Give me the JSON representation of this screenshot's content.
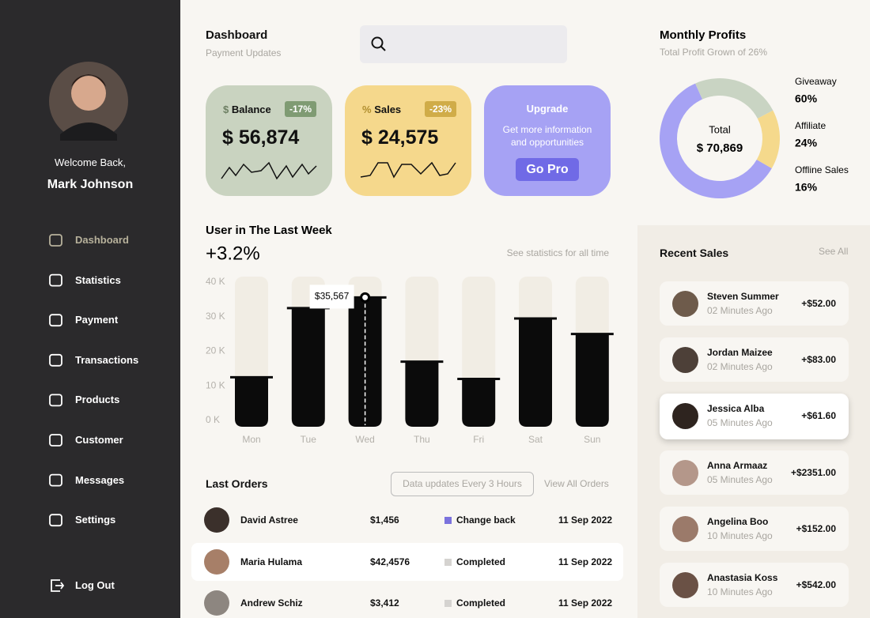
{
  "sidebar": {
    "welcome": "Welcome Back,",
    "user_name": "Mark Johnson",
    "menu": [
      "Dashboard",
      "Statistics",
      "Payment",
      "Transactions",
      "Products",
      "Customer",
      "Messages",
      "Settings"
    ],
    "logout": "Log Out"
  },
  "header": {
    "title": "Dashboard",
    "subtitle": "Payment Updates"
  },
  "cards": [
    {
      "label": "Balance",
      "badge": "-17%",
      "amount": "$ 56,874"
    },
    {
      "label": "Sales",
      "badge": "-23%",
      "amount": "$ 24,575"
    }
  ],
  "upgrade": {
    "title": "Upgrade",
    "text": "Get more information and opportunities",
    "button": "Go Pro"
  },
  "chart_data": [
    {
      "type": "bar",
      "title": "User in The Last Week",
      "change": "+3.2%",
      "link": "See statistics for all time",
      "categories": [
        "Mon",
        "Tue",
        "Wed",
        "Thu",
        "Fri",
        "Sat",
        "Sun"
      ],
      "values": [
        12500,
        32500,
        35567,
        17000,
        12000,
        29500,
        25000
      ],
      "value_labels": [
        null,
        null,
        "$35,567",
        null,
        null,
        null,
        null
      ],
      "color": "#0b0b0b",
      "ylim": [
        0,
        40000
      ],
      "yticks": [
        {
          "value": 0,
          "label": "0 K"
        },
        {
          "value": 10000,
          "label": "10 K"
        },
        {
          "value": 20000,
          "label": "20 K"
        },
        {
          "value": 30000,
          "label": "30 K"
        },
        {
          "value": 40000,
          "label": "40 K"
        }
      ]
    },
    {
      "type": "pie",
      "title": "Monthly Profits",
      "subtitle": "Total Profit Grown of 26%",
      "center_label": "Total",
      "center_value": "$ 70,869",
      "categories": [
        "Giveaway",
        "Affiliate",
        "Offline Sales"
      ],
      "values": [
        60,
        24,
        16
      ],
      "value_labels": [
        "60%",
        "24%",
        "16%"
      ],
      "colors": [
        "#a6a2f4",
        "#c9d4c3",
        "#f5d98c"
      ]
    }
  ],
  "last_orders": {
    "title": "Last Orders",
    "note": "Data updates Every 3 Hours",
    "link": "View All Orders",
    "rows": [
      {
        "name": "David Astree",
        "amount": "$1,456",
        "status": "Change back",
        "date": "11 Sep 2022"
      },
      {
        "name": "Maria Hulama",
        "amount": "$42,4576",
        "status": "Completed",
        "date": "11 Sep 2022"
      },
      {
        "name": "Andrew Schiz",
        "amount": "$3,412",
        "status": "Completed",
        "date": "11 Sep 2022"
      }
    ]
  },
  "recent_sales": {
    "title": "Recent Sales",
    "link": "See All",
    "items": [
      {
        "name": "Steven Summer",
        "time": "02 Minutes Ago",
        "amount": "+$52.00"
      },
      {
        "name": "Jordan Maizee",
        "time": "02 Minutes Ago",
        "amount": "+$83.00"
      },
      {
        "name": "Jessica Alba",
        "time": "05 Minutes Ago",
        "amount": "+$61.60"
      },
      {
        "name": "Anna Armaaz",
        "time": "05 Minutes Ago",
        "amount": "+$2351.00"
      },
      {
        "name": "Angelina Boo",
        "time": "10 Minutes Ago",
        "amount": "+$152.00"
      },
      {
        "name": "Anastasia Koss",
        "time": "10 Minutes Ago",
        "amount": "+$542.00"
      }
    ]
  }
}
